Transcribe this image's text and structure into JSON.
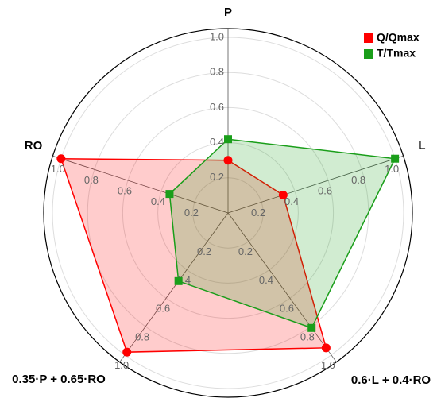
{
  "chart_data": {
    "type": "radar",
    "categories": [
      "P",
      "L",
      "0.6·L + 0.4·RO",
      "0.35·P + 0.65·RO",
      "RO"
    ],
    "series": [
      {
        "name": "Q/Qmax",
        "color": "#ff0000",
        "marker": "circle",
        "values": [
          0.3,
          0.33,
          0.95,
          0.98,
          1.0
        ]
      },
      {
        "name": "T/Tmax",
        "color": "#1a9e1a",
        "marker": "square",
        "values": [
          0.42,
          1.0,
          0.81,
          0.48,
          0.35
        ]
      }
    ],
    "rlim": [
      0,
      1.05
    ],
    "rticks": [
      0.2,
      0.4,
      0.6,
      0.8,
      {
        "value": 1,
        "label": "1.0"
      }
    ],
    "grid": true,
    "legend": "upper right"
  }
}
